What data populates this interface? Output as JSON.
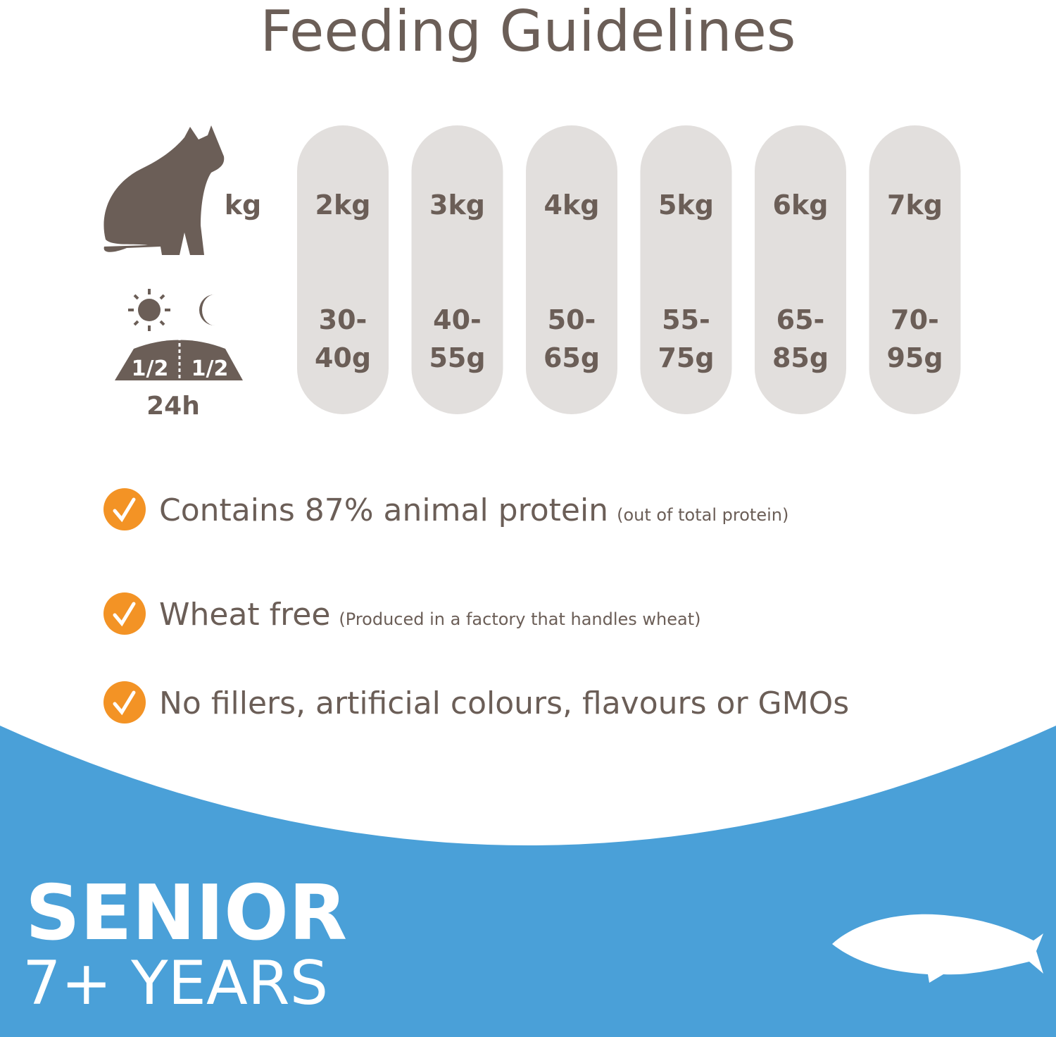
{
  "header": {
    "title": "Feeding Guidelines"
  },
  "table": {
    "weight_label": "kg",
    "portion_labels": [
      "1/2",
      "1/2"
    ],
    "period_label": "24h",
    "columns": [
      {
        "weight": "2kg",
        "amount": [
          "30-",
          "40g"
        ]
      },
      {
        "weight": "3kg",
        "amount": [
          "40-",
          "55g"
        ]
      },
      {
        "weight": "4kg",
        "amount": [
          "50-",
          "65g"
        ]
      },
      {
        "weight": "5kg",
        "amount": [
          "55-",
          "75g"
        ]
      },
      {
        "weight": "6kg",
        "amount": [
          "65-",
          "85g"
        ]
      },
      {
        "weight": "7kg",
        "amount": [
          "70-",
          "95g"
        ]
      }
    ]
  },
  "benefits": [
    {
      "text": "Contains 87% animal protein",
      "note": "(out of total protein)"
    },
    {
      "text": "Wheat free",
      "note": "(Produced in a factory that handles wheat)"
    },
    {
      "text": "No fillers, artificial colours, flavours or GMOs"
    }
  ],
  "footer": {
    "title": "SENIOR",
    "subtitle": "7+ YEARS"
  }
}
